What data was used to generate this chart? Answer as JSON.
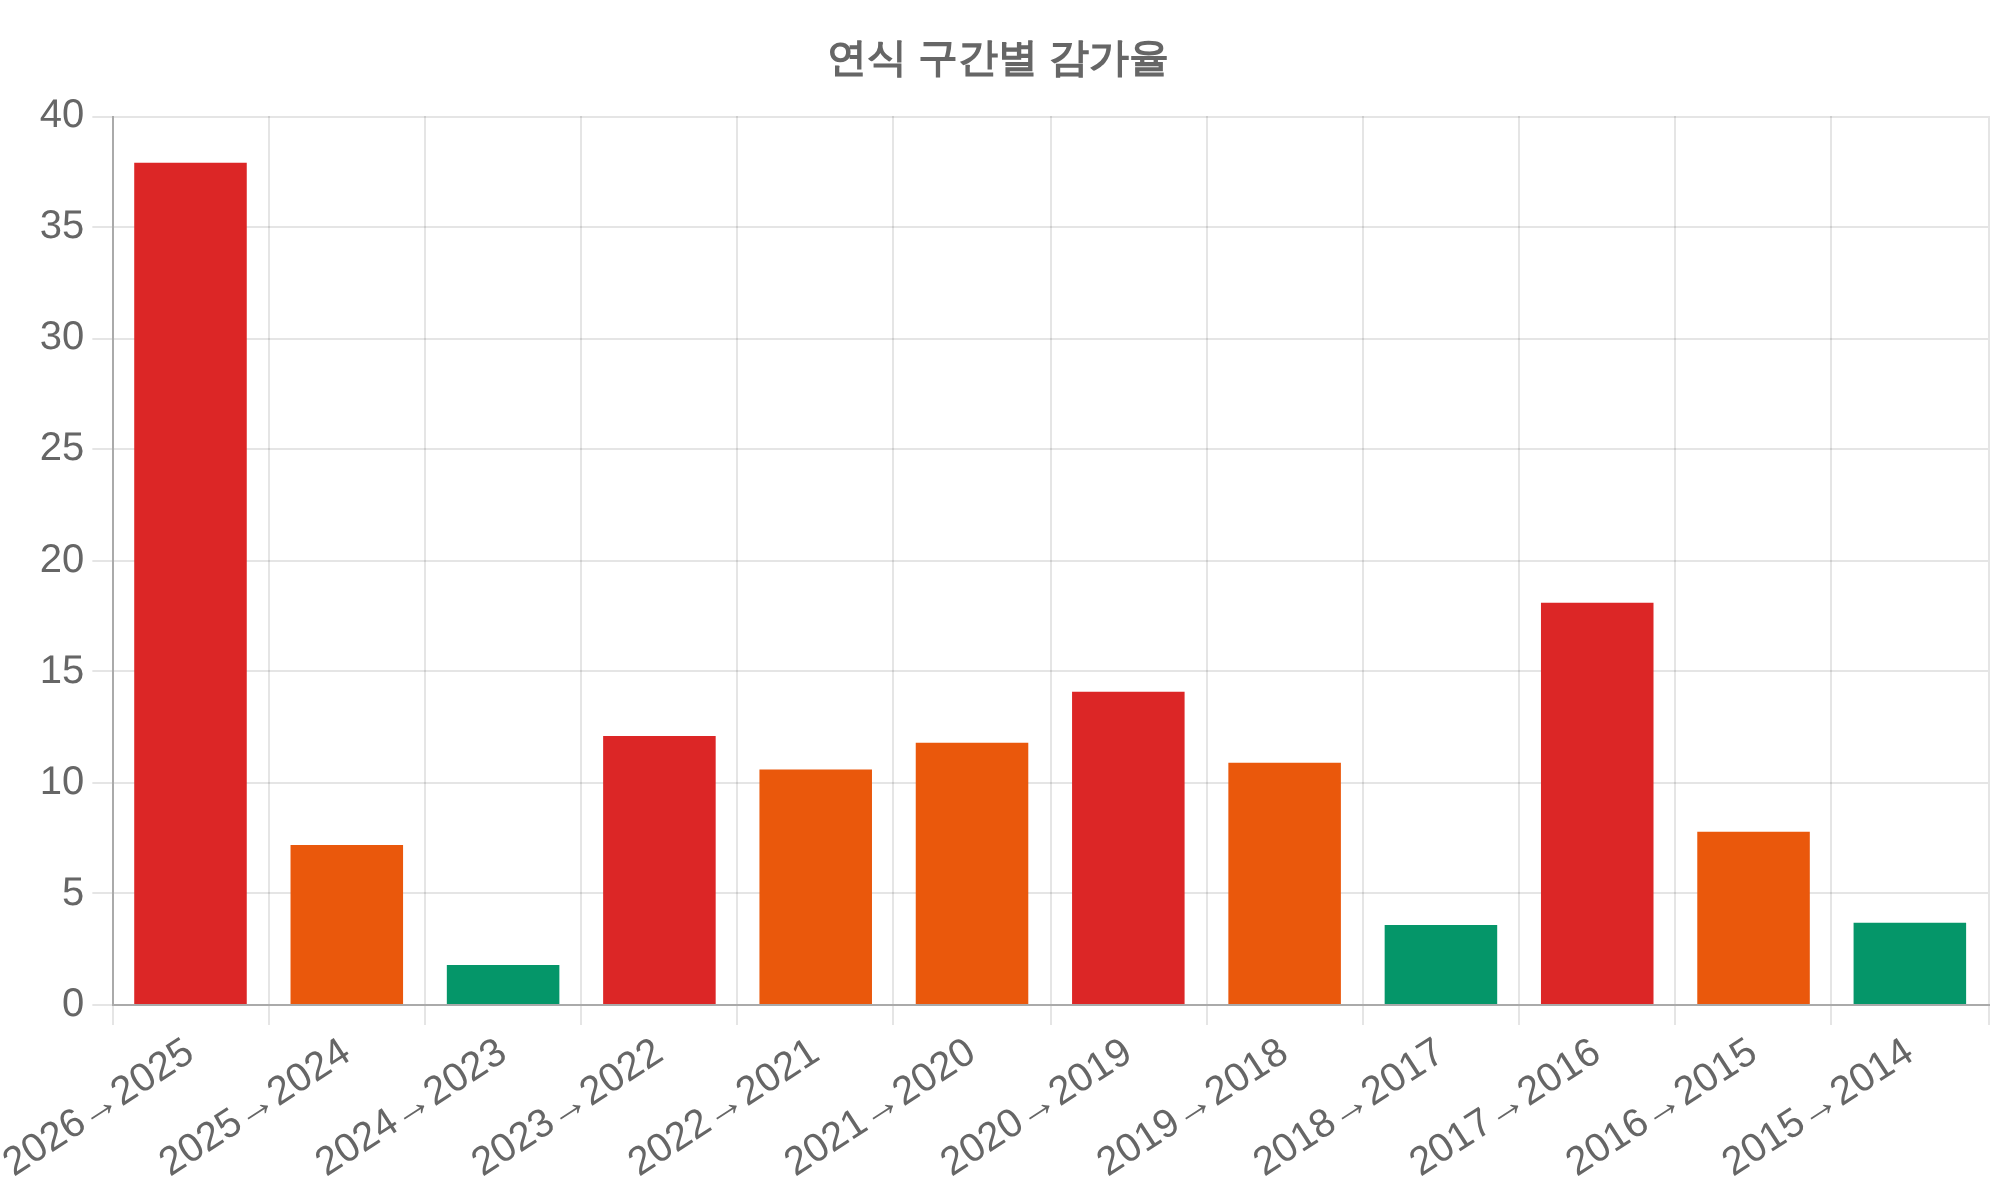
{
  "chart_data": {
    "type": "bar",
    "title": "연식 구간별 감가율",
    "categories": [
      "2026→2025",
      "2025→2024",
      "2024→2023",
      "2023→2022",
      "2022→2021",
      "2021→2020",
      "2020→2019",
      "2019→2018",
      "2018→2017",
      "2017→2016",
      "2016→2015",
      "2015→2014"
    ],
    "values": [
      37.9,
      7.2,
      1.8,
      12.1,
      10.6,
      11.8,
      14.1,
      10.9,
      3.6,
      18.1,
      7.8,
      3.7
    ],
    "colors": [
      "#dc2626",
      "#ea580c",
      "#059669",
      "#dc2626",
      "#ea580c",
      "#ea580c",
      "#dc2626",
      "#ea580c",
      "#059669",
      "#dc2626",
      "#ea580c",
      "#059669"
    ],
    "ylim": [
      0,
      40
    ],
    "yticks": [
      0,
      5,
      10,
      15,
      20,
      25,
      30,
      35,
      40
    ],
    "grid": true,
    "legend": false
  }
}
